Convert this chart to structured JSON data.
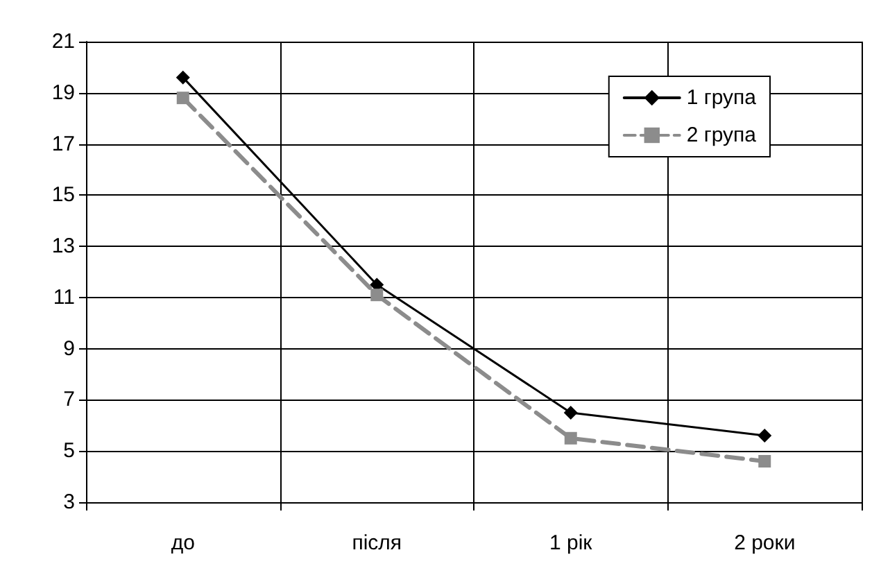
{
  "chart_data": {
    "type": "line",
    "categories": [
      "до",
      "після",
      "1 рік",
      "2 роки"
    ],
    "series": [
      {
        "name": "1 група",
        "color": "#000000",
        "marker": "diamond",
        "line_style": "solid",
        "values": [
          19.6,
          11.5,
          6.5,
          5.6
        ]
      },
      {
        "name": "2 група",
        "color": "#8c8c8c",
        "marker": "square",
        "line_style": "dashed",
        "values": [
          18.8,
          11.1,
          5.5,
          4.6
        ]
      }
    ],
    "ylim": [
      3,
      21
    ],
    "yticks": [
      3,
      5,
      7,
      9,
      11,
      13,
      15,
      17,
      19,
      21
    ],
    "grid": true,
    "legend": "top right"
  }
}
